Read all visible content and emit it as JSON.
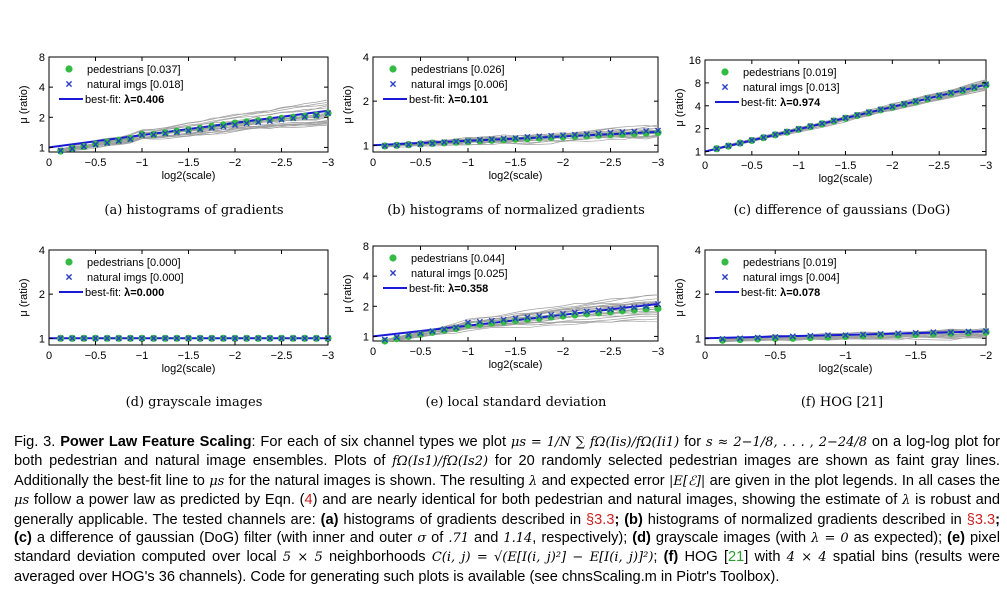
{
  "chart_data": [
    {
      "id": "a",
      "type": "line",
      "caption": "(a) histograms of gradients",
      "xlabel": "log2(scale)",
      "ylabel": "μ (ratio)",
      "xticks": [
        "0",
        "−0.5",
        "−1",
        "−1.5",
        "−2",
        "−2.5",
        "−3"
      ],
      "yticks": [
        "1",
        "2",
        "4",
        "8"
      ],
      "yscale": "log2",
      "ylim": [
        0.9,
        8
      ],
      "xlim": [
        0,
        -3
      ],
      "legend": {
        "placement": "top-left",
        "entries": [
          "pedestrians [0.037]",
          "natural imgs [0.018]",
          "best-fit: λ=0.406"
        ]
      },
      "series": [
        {
          "name": "pedestrians [0.037]",
          "marker": "circle",
          "color": "#33bb44",
          "x": [
            -0.125,
            -0.25,
            -0.375,
            -0.5,
            -0.625,
            -0.75,
            -0.875,
            -1,
            -1.125,
            -1.25,
            -1.375,
            -1.5,
            -1.625,
            -1.75,
            -1.875,
            -2,
            -2.125,
            -2.25,
            -2.375,
            -2.5,
            -2.625,
            -2.75,
            -2.875,
            -3
          ],
          "y": [
            0.92,
            0.98,
            1.02,
            1.08,
            1.13,
            1.18,
            1.23,
            1.35,
            1.35,
            1.4,
            1.45,
            1.5,
            1.55,
            1.62,
            1.68,
            1.75,
            1.8,
            1.85,
            1.9,
            1.95,
            2.0,
            2.05,
            2.1,
            2.2
          ]
        },
        {
          "name": "natural imgs [0.018]",
          "marker": "x",
          "color": "#2a3fc4",
          "x": [
            -0.125,
            -0.25,
            -0.375,
            -0.5,
            -0.625,
            -0.75,
            -0.875,
            -1,
            -1.125,
            -1.25,
            -1.375,
            -1.5,
            -1.625,
            -1.75,
            -1.875,
            -2,
            -2.125,
            -2.25,
            -2.375,
            -2.5,
            -2.625,
            -2.75,
            -2.875,
            -3
          ],
          "y": [
            0.93,
            0.97,
            1.02,
            1.07,
            1.11,
            1.16,
            1.21,
            1.33,
            1.34,
            1.38,
            1.42,
            1.47,
            1.52,
            1.57,
            1.62,
            1.68,
            1.74,
            1.79,
            1.84,
            1.9,
            1.96,
            2.02,
            2.08,
            2.2
          ]
        },
        {
          "name": "best-fit: λ=0.406",
          "lambda": 0.406,
          "color": "#1a1ad6"
        }
      ]
    },
    {
      "id": "b",
      "type": "line",
      "caption": "(b) histograms of normalized gradients",
      "xlabel": "log2(scale)",
      "ylabel": "μ (ratio)",
      "xticks": [
        "0",
        "−0.5",
        "−1",
        "−1.5",
        "−2",
        "−2.5",
        "−3"
      ],
      "yticks": [
        "1",
        "2",
        "4"
      ],
      "yscale": "log2",
      "ylim": [
        0.9,
        4
      ],
      "xlim": [
        0,
        -3
      ],
      "legend": {
        "placement": "top-left",
        "entries": [
          "pedestrians [0.026]",
          "natural imgs [0.006]",
          "best-fit: λ=0.101"
        ]
      },
      "series": [
        {
          "name": "pedestrians [0.026]",
          "marker": "circle",
          "color": "#33bb44",
          "x": [
            -0.125,
            -0.25,
            -0.375,
            -0.5,
            -0.625,
            -0.75,
            -0.875,
            -1,
            -1.125,
            -1.25,
            -1.375,
            -1.5,
            -1.625,
            -1.75,
            -1.875,
            -2,
            -2.125,
            -2.25,
            -2.375,
            -2.5,
            -2.625,
            -2.75,
            -2.875,
            -3
          ],
          "y": [
            0.99,
            1.0,
            1.01,
            1.02,
            1.03,
            1.04,
            1.05,
            1.06,
            1.07,
            1.08,
            1.09,
            1.1,
            1.11,
            1.12,
            1.13,
            1.14,
            1.15,
            1.16,
            1.17,
            1.18,
            1.19,
            1.2,
            1.21,
            1.22
          ]
        },
        {
          "name": "natural imgs [0.006]",
          "marker": "x",
          "color": "#2a3fc4",
          "x": [
            -0.125,
            -0.25,
            -0.375,
            -0.5,
            -0.625,
            -0.75,
            -0.875,
            -1,
            -1.125,
            -1.25,
            -1.375,
            -1.5,
            -1.625,
            -1.75,
            -1.875,
            -2,
            -2.125,
            -2.25,
            -2.375,
            -2.5,
            -2.625,
            -2.75,
            -2.875,
            -3
          ],
          "y": [
            0.99,
            1.0,
            1.01,
            1.02,
            1.03,
            1.05,
            1.06,
            1.07,
            1.09,
            1.1,
            1.11,
            1.12,
            1.14,
            1.15,
            1.16,
            1.17,
            1.18,
            1.19,
            1.2,
            1.22,
            1.23,
            1.24,
            1.25,
            1.26
          ]
        },
        {
          "name": "best-fit: λ=0.101",
          "lambda": 0.101,
          "color": "#1a1ad6"
        }
      ]
    },
    {
      "id": "c",
      "type": "line",
      "caption": "(c) difference of gaussians (DoG)",
      "xlabel": "log2(scale)",
      "ylabel": "μ (ratio)",
      "xticks": [
        "0",
        "−0.5",
        "−1",
        "−1.5",
        "−2",
        "−2.5",
        "−3"
      ],
      "yticks": [
        "1",
        "2",
        "4",
        "8",
        "16"
      ],
      "yscale": "log2",
      "ylim": [
        0.9,
        16
      ],
      "xlim": [
        0,
        -3
      ],
      "legend": {
        "placement": "top-left",
        "entries": [
          "pedestrians [0.019]",
          "natural imgs [0.013]",
          "best-fit: λ=0.974"
        ]
      },
      "series": [
        {
          "name": "pedestrians [0.019]",
          "marker": "circle",
          "color": "#33bb44",
          "x": [
            -0.125,
            -0.25,
            -0.375,
            -0.5,
            -0.625,
            -0.75,
            -0.875,
            -1,
            -1.125,
            -1.25,
            -1.375,
            -1.5,
            -1.625,
            -1.75,
            -1.875,
            -2,
            -2.125,
            -2.25,
            -2.375,
            -2.5,
            -2.625,
            -2.75,
            -2.875,
            -3
          ],
          "y": [
            1.09,
            1.18,
            1.29,
            1.4,
            1.52,
            1.66,
            1.8,
            1.96,
            2.13,
            2.31,
            2.52,
            2.74,
            2.98,
            3.24,
            3.53,
            3.83,
            4.17,
            4.53,
            4.93,
            5.36,
            5.83,
            6.34,
            6.9,
            7.5
          ]
        },
        {
          "name": "natural imgs [0.013]",
          "marker": "x",
          "color": "#2a3fc4",
          "x": [
            -0.125,
            -0.25,
            -0.375,
            -0.5,
            -0.625,
            -0.75,
            -0.875,
            -1,
            -1.125,
            -1.25,
            -1.375,
            -1.5,
            -1.625,
            -1.75,
            -1.875,
            -2,
            -2.125,
            -2.25,
            -2.375,
            -2.5,
            -2.625,
            -2.75,
            -2.875,
            -3
          ],
          "y": [
            1.09,
            1.19,
            1.29,
            1.41,
            1.53,
            1.67,
            1.82,
            1.98,
            2.15,
            2.34,
            2.55,
            2.77,
            3.02,
            3.29,
            3.58,
            3.89,
            4.24,
            4.61,
            5.02,
            5.46,
            5.94,
            6.47,
            7.04,
            7.66
          ]
        },
        {
          "name": "best-fit: λ=0.974",
          "lambda": 0.974,
          "color": "#1a1ad6"
        }
      ]
    },
    {
      "id": "d",
      "type": "line",
      "caption": "(d) grayscale images",
      "xlabel": "log2(scale)",
      "ylabel": "μ (ratio)",
      "xticks": [
        "0",
        "−0.5",
        "−1",
        "−1.5",
        "−2",
        "−2.5",
        "−3"
      ],
      "yticks": [
        "1",
        "2",
        "4"
      ],
      "yscale": "log2",
      "ylim": [
        0.9,
        4
      ],
      "xlim": [
        0,
        -3
      ],
      "legend": {
        "placement": "top-left",
        "entries": [
          "pedestrians [0.000]",
          "natural imgs [0.000]",
          "best-fit: λ=0.000"
        ]
      },
      "series": [
        {
          "name": "pedestrians [0.000]",
          "marker": "circle",
          "color": "#33bb44",
          "x": [
            -0.125,
            -0.25,
            -0.375,
            -0.5,
            -0.625,
            -0.75,
            -0.875,
            -1,
            -1.125,
            -1.25,
            -1.375,
            -1.5,
            -1.625,
            -1.75,
            -1.875,
            -2,
            -2.125,
            -2.25,
            -2.375,
            -2.5,
            -2.625,
            -2.75,
            -2.875,
            -3
          ],
          "y": [
            1,
            1,
            1,
            1,
            1,
            1,
            1,
            1,
            1,
            1,
            1,
            1,
            1,
            1,
            1,
            1,
            1,
            1,
            1,
            1,
            1,
            1,
            1,
            1
          ]
        },
        {
          "name": "natural imgs [0.000]",
          "marker": "x",
          "color": "#2a3fc4",
          "x": [
            -0.125,
            -0.25,
            -0.375,
            -0.5,
            -0.625,
            -0.75,
            -0.875,
            -1,
            -1.125,
            -1.25,
            -1.375,
            -1.5,
            -1.625,
            -1.75,
            -1.875,
            -2,
            -2.125,
            -2.25,
            -2.375,
            -2.5,
            -2.625,
            -2.75,
            -2.875,
            -3
          ],
          "y": [
            1,
            1,
            1,
            1,
            1,
            1,
            1,
            1,
            1,
            1,
            1,
            1,
            1,
            1,
            1,
            1,
            1,
            1,
            1,
            1,
            1,
            1,
            1,
            1
          ]
        },
        {
          "name": "best-fit: λ=0.000",
          "lambda": 0.0,
          "color": "#1a1ad6"
        }
      ]
    },
    {
      "id": "e",
      "type": "line",
      "caption": "(e) local standard deviation",
      "xlabel": "log2(scale)",
      "ylabel": "μ (ratio)",
      "xticks": [
        "0",
        "−0.5",
        "−1",
        "−1.5",
        "−2",
        "−2.5",
        "−3"
      ],
      "yticks": [
        "1",
        "2",
        "4",
        "8"
      ],
      "yscale": "log2",
      "ylim": [
        0.9,
        8
      ],
      "xlim": [
        0,
        -3
      ],
      "legend": {
        "placement": "top-left",
        "entries": [
          "pedestrians [0.044]",
          "natural imgs [0.025]",
          "best-fit: λ=0.358"
        ]
      },
      "series": [
        {
          "name": "pedestrians [0.044]",
          "marker": "circle",
          "color": "#33bb44",
          "x": [
            -0.125,
            -0.25,
            -0.375,
            -0.5,
            -0.625,
            -0.75,
            -0.875,
            -1,
            -1.125,
            -1.25,
            -1.375,
            -1.5,
            -1.625,
            -1.75,
            -1.875,
            -2,
            -2.125,
            -2.25,
            -2.375,
            -2.5,
            -2.625,
            -2.75,
            -2.875,
            -3
          ],
          "y": [
            0.9,
            0.95,
            1.0,
            1.05,
            1.1,
            1.15,
            1.2,
            1.3,
            1.32,
            1.36,
            1.4,
            1.44,
            1.48,
            1.52,
            1.56,
            1.6,
            1.64,
            1.68,
            1.72,
            1.76,
            1.8,
            1.84,
            1.88,
            1.9
          ]
        },
        {
          "name": "natural imgs [0.025]",
          "marker": "x",
          "color": "#2a3fc4",
          "x": [
            -0.125,
            -0.25,
            -0.375,
            -0.5,
            -0.625,
            -0.75,
            -0.875,
            -1,
            -1.125,
            -1.25,
            -1.375,
            -1.5,
            -1.625,
            -1.75,
            -1.875,
            -2,
            -2.125,
            -2.25,
            -2.375,
            -2.5,
            -2.625,
            -2.75,
            -2.875,
            -3
          ],
          "y": [
            0.93,
            0.98,
            1.03,
            1.08,
            1.13,
            1.18,
            1.23,
            1.38,
            1.4,
            1.43,
            1.47,
            1.51,
            1.55,
            1.6,
            1.64,
            1.68,
            1.73,
            1.77,
            1.82,
            1.86,
            1.91,
            1.95,
            2.0,
            2.1
          ]
        },
        {
          "name": "best-fit: λ=0.358",
          "lambda": 0.358,
          "color": "#1a1ad6"
        }
      ]
    },
    {
      "id": "f",
      "type": "line",
      "caption": "(f) HOG [21]",
      "xlabel": "log2(scale)",
      "ylabel": "μ (ratio)",
      "xticks": [
        "0",
        "−0.5",
        "−1",
        "−1.5",
        "−2"
      ],
      "yticks": [
        "1",
        "2",
        "4"
      ],
      "yscale": "log2",
      "ylim": [
        0.9,
        4
      ],
      "xlim": [
        0,
        -2
      ],
      "legend": {
        "placement": "top-left",
        "entries": [
          "pedestrians [0.019]",
          "natural imgs [0.004]",
          "best-fit: λ=0.078"
        ]
      },
      "series": [
        {
          "name": "pedestrians [0.019]",
          "marker": "circle",
          "color": "#33bb44",
          "x": [
            -0.125,
            -0.25,
            -0.375,
            -0.5,
            -0.625,
            -0.75,
            -0.875,
            -1,
            -1.125,
            -1.25,
            -1.375,
            -1.5,
            -1.625,
            -1.75,
            -1.875,
            -2
          ],
          "y": [
            0.97,
            0.98,
            0.99,
            1.0,
            1.0,
            1.01,
            1.02,
            1.03,
            1.04,
            1.05,
            1.05,
            1.06,
            1.07,
            1.08,
            1.09,
            1.1
          ]
        },
        {
          "name": "natural imgs [0.004]",
          "marker": "x",
          "color": "#2a3fc4",
          "x": [
            -0.125,
            -0.25,
            -0.375,
            -0.5,
            -0.625,
            -0.75,
            -0.875,
            -1,
            -1.125,
            -1.25,
            -1.375,
            -1.5,
            -1.625,
            -1.75,
            -1.875,
            -2
          ],
          "y": [
            0.99,
            1.0,
            1.01,
            1.02,
            1.03,
            1.04,
            1.05,
            1.05,
            1.06,
            1.07,
            1.08,
            1.09,
            1.1,
            1.1,
            1.11,
            1.12
          ]
        },
        {
          "name": "best-fit: λ=0.078",
          "lambda": 0.078,
          "color": "#1a1ad6"
        }
      ]
    }
  ],
  "caption": {
    "fig_label": "Fig. 3.",
    "title": "Power Law Feature Scaling",
    "line1_a": ": For each of six channel types we plot ",
    "math_mu_def": "μs = 1/N ∑ fΩ(Iis)/fΩ(Ii1)",
    "line1_b": " for ",
    "math_s_range": "s ≈ 2−1/8, . . . , 2−24/8",
    "line1_c": " on a",
    "line2_a": "log-log plot for both pedestrian and natural image ensembles. Plots of ",
    "math_ratio": "fΩ(Is1)/fΩ(Is2)",
    "line2_b": " for 20 randomly selected pedestrian images",
    "line3_a": "are shown as faint gray lines. Additionally the best-fit line to ",
    "math_mus": "μs",
    "line3_b": " for the natural images is shown. The resulting ",
    "math_lambda": "λ",
    "line3_c": " and expected",
    "line4_a": "error ",
    "math_err": "|E[ℰ]|",
    "line4_b": " are given in the plot legends. In all cases the ",
    "line4_c": " follow a power law as predicted by Eqn. (",
    "eqn_ref": "4",
    "line4_d": ") and are nearly identical",
    "line5_a": "for both pedestrian and natural images, showing the estimate of ",
    "line5_b": " is robust and generally applicable. The tested channels are:",
    "line6_a_bold": "(a)",
    "line6_a": " histograms of gradients described in ",
    "sec_ref_1": "§3.3",
    "line6_b_bold": "; (b)",
    "line6_b": " histograms of normalized gradients described in ",
    "sec_ref_2": "§3.3",
    "line6_c_bold": "; (c)",
    "line6_c": " a difference of gaussian",
    "line7_a": "(DoG) filter (with inner and outer ",
    "math_sigma": "σ",
    "line7_b": " of ",
    "math_71": ".71",
    "line7_c": " and ",
    "math_114": "1.14",
    "line7_d": ", respectively); ",
    "line7_d_bold": "(d)",
    "line7_e": " grayscale images (with ",
    "math_lambda0": "λ = 0",
    "line7_f": " as expected); ",
    "line7_f_bold": "(e)",
    "line7_g": " pixel standard",
    "line8_a": "deviation computed over local ",
    "math_5x5": "5 × 5",
    "line8_b": " neighborhoods ",
    "math_cij": "C(i, j) = √(E[I(i, j)²] − E[I(i, j)]²)",
    "line8_c": "; ",
    "line8_c_bold": "(f)",
    "line8_d": " HOG [",
    "hog_ref": "21",
    "line8_e": "] with ",
    "math_4x4": "4 × 4",
    "line8_f": " spatial bins (results",
    "line9": "were averaged over HOG's 36 channels). Code for generating such plots is available (see chnsScaling.m in Piotr's Toolbox)."
  },
  "colors": {
    "pedestrians": "#33bb44",
    "natural": "#2a3fc4",
    "bestfit": "#1a1ad6",
    "gray_lines": "#a0a0a0"
  }
}
